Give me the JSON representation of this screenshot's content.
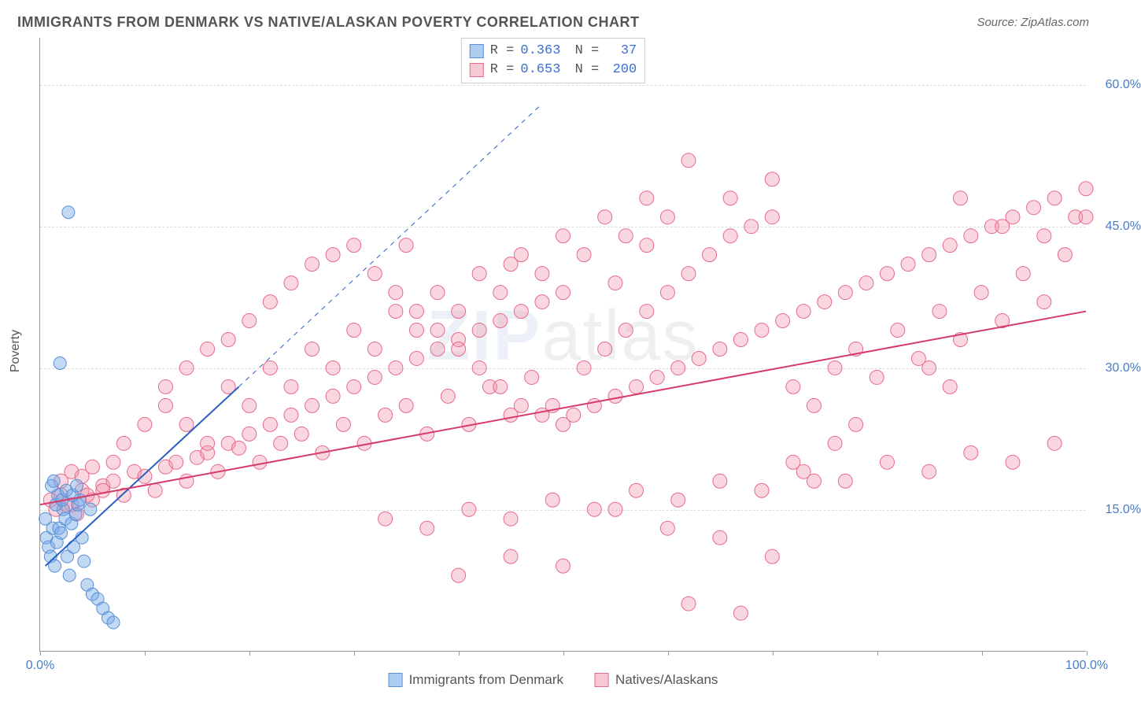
{
  "title": "IMMIGRANTS FROM DENMARK VS NATIVE/ALASKAN POVERTY CORRELATION CHART",
  "source": "Source: ZipAtlas.com",
  "watermark_main": "ZIP",
  "watermark_sub": "atlas",
  "y_axis_label": "Poverty",
  "chart": {
    "type": "scatter",
    "xlim": [
      0,
      100
    ],
    "ylim": [
      0,
      65
    ],
    "x_ticks": [
      0,
      10,
      20,
      30,
      40,
      50,
      60,
      70,
      80,
      90,
      100
    ],
    "x_tick_labels": {
      "0": "0.0%",
      "100": "100.0%"
    },
    "y_ticks": [
      15,
      30,
      45,
      60
    ],
    "y_tick_labels": [
      "15.0%",
      "30.0%",
      "45.0%",
      "60.0%"
    ],
    "grid_color": "#dddddd",
    "background_color": "#ffffff",
    "series": [
      {
        "name": "Immigrants from Denmark",
        "swatch_fill": "#aecdf0",
        "swatch_border": "#5a8fd6",
        "point_fill": "rgba(120,170,230,0.45)",
        "point_stroke": "#5a8fd6",
        "point_radius": 8,
        "R": "0.363",
        "N": "37",
        "trend": {
          "x1": 0.5,
          "y1": 9,
          "x2": 19,
          "y2": 28,
          "extend_x2": 48,
          "extend_y2": 58,
          "color": "#2b5fc4",
          "width": 2
        },
        "points": [
          [
            0.5,
            14
          ],
          [
            0.6,
            12
          ],
          [
            0.8,
            11
          ],
          [
            1,
            10
          ],
          [
            1.2,
            13
          ],
          [
            1.4,
            9
          ],
          [
            1.6,
            11.5
          ],
          [
            1.8,
            13
          ],
          [
            2,
            12.5
          ],
          [
            2.2,
            15
          ],
          [
            2.4,
            14
          ],
          [
            2.6,
            10
          ],
          [
            2.8,
            8
          ],
          [
            3,
            13.5
          ],
          [
            3.2,
            11
          ],
          [
            3.4,
            14.5
          ],
          [
            3.6,
            15.5
          ],
          [
            3.8,
            16
          ],
          [
            4,
            12
          ],
          [
            4.2,
            9.5
          ],
          [
            1.5,
            15.5
          ],
          [
            1.7,
            16.5
          ],
          [
            2.1,
            16
          ],
          [
            2.5,
            17
          ],
          [
            3.1,
            16.5
          ],
          [
            3.5,
            17.5
          ],
          [
            4.5,
            7
          ],
          [
            5,
            6
          ],
          [
            5.5,
            5.5
          ],
          [
            6,
            4.5
          ],
          [
            6.5,
            3.5
          ],
          [
            7,
            3
          ],
          [
            1.1,
            17.5
          ],
          [
            1.3,
            18
          ],
          [
            2.7,
            46.5
          ],
          [
            1.9,
            30.5
          ],
          [
            4.8,
            15
          ]
        ]
      },
      {
        "name": "Natives/Alaskans",
        "swatch_fill": "#f7c9d4",
        "swatch_border": "#e66a8a",
        "point_fill": "rgba(240,140,165,0.35)",
        "point_stroke": "#e66a8a",
        "point_radius": 9,
        "R": "0.653",
        "N": "200",
        "trend": {
          "x1": 0,
          "y1": 15.5,
          "x2": 100,
          "y2": 36,
          "color": "#d63b6b",
          "width": 2
        },
        "points": [
          [
            1,
            16
          ],
          [
            2,
            16.5
          ],
          [
            3,
            15.5
          ],
          [
            4,
            17
          ],
          [
            5,
            16
          ],
          [
            6,
            17.5
          ],
          [
            7,
            18
          ],
          [
            8,
            16.5
          ],
          [
            9,
            19
          ],
          [
            10,
            18.5
          ],
          [
            11,
            17
          ],
          [
            12,
            19.5
          ],
          [
            13,
            20
          ],
          [
            14,
            18
          ],
          [
            15,
            20.5
          ],
          [
            16,
            21
          ],
          [
            17,
            19
          ],
          [
            18,
            22
          ],
          [
            19,
            21.5
          ],
          [
            20,
            23
          ],
          [
            21,
            20
          ],
          [
            22,
            24
          ],
          [
            23,
            22
          ],
          [
            24,
            25
          ],
          [
            25,
            23
          ],
          [
            26,
            26
          ],
          [
            27,
            21
          ],
          [
            28,
            27
          ],
          [
            29,
            24
          ],
          [
            30,
            28
          ],
          [
            31,
            22
          ],
          [
            32,
            29
          ],
          [
            33,
            25
          ],
          [
            34,
            30
          ],
          [
            35,
            26
          ],
          [
            36,
            31
          ],
          [
            37,
            23
          ],
          [
            38,
            32
          ],
          [
            39,
            27
          ],
          [
            40,
            33
          ],
          [
            41,
            24
          ],
          [
            42,
            34
          ],
          [
            43,
            28
          ],
          [
            44,
            35
          ],
          [
            45,
            25
          ],
          [
            46,
            36
          ],
          [
            47,
            29
          ],
          [
            48,
            37
          ],
          [
            49,
            26
          ],
          [
            50,
            38
          ],
          [
            12,
            28
          ],
          [
            14,
            30
          ],
          [
            16,
            32
          ],
          [
            18,
            33
          ],
          [
            20,
            35
          ],
          [
            22,
            37
          ],
          [
            24,
            39
          ],
          [
            26,
            41
          ],
          [
            28,
            42
          ],
          [
            30,
            43
          ],
          [
            32,
            40
          ],
          [
            34,
            38
          ],
          [
            36,
            36
          ],
          [
            38,
            34
          ],
          [
            40,
            32
          ],
          [
            42,
            30
          ],
          [
            44,
            28
          ],
          [
            46,
            26
          ],
          [
            48,
            25
          ],
          [
            50,
            24
          ],
          [
            52,
            30
          ],
          [
            54,
            32
          ],
          [
            56,
            34
          ],
          [
            58,
            36
          ],
          [
            60,
            38
          ],
          [
            62,
            40
          ],
          [
            64,
            42
          ],
          [
            66,
            44
          ],
          [
            68,
            45
          ],
          [
            70,
            46
          ],
          [
            51,
            25
          ],
          [
            53,
            26
          ],
          [
            55,
            27
          ],
          [
            57,
            28
          ],
          [
            59,
            29
          ],
          [
            61,
            30
          ],
          [
            63,
            31
          ],
          [
            65,
            32
          ],
          [
            67,
            33
          ],
          [
            69,
            34
          ],
          [
            71,
            35
          ],
          [
            73,
            36
          ],
          [
            75,
            37
          ],
          [
            77,
            38
          ],
          [
            79,
            39
          ],
          [
            81,
            40
          ],
          [
            83,
            41
          ],
          [
            85,
            42
          ],
          [
            87,
            43
          ],
          [
            89,
            44
          ],
          [
            91,
            45
          ],
          [
            93,
            46
          ],
          [
            95,
            47
          ],
          [
            97,
            48
          ],
          [
            99,
            46
          ],
          [
            72,
            28
          ],
          [
            74,
            26
          ],
          [
            76,
            30
          ],
          [
            78,
            32
          ],
          [
            80,
            29
          ],
          [
            82,
            34
          ],
          [
            84,
            31
          ],
          [
            86,
            36
          ],
          [
            88,
            33
          ],
          [
            90,
            38
          ],
          [
            92,
            35
          ],
          [
            94,
            40
          ],
          [
            96,
            37
          ],
          [
            98,
            42
          ],
          [
            100,
            49
          ],
          [
            55,
            15
          ],
          [
            60,
            13
          ],
          [
            65,
            12
          ],
          [
            70,
            10
          ],
          [
            62,
            5
          ],
          [
            67,
            4
          ],
          [
            72,
            20
          ],
          [
            74,
            18
          ],
          [
            76,
            22
          ],
          [
            78,
            24
          ],
          [
            58,
            43
          ],
          [
            62,
            52
          ],
          [
            66,
            48
          ],
          [
            70,
            50
          ],
          [
            88,
            48
          ],
          [
            92,
            45
          ],
          [
            96,
            44
          ],
          [
            100,
            46
          ],
          [
            85,
            30
          ],
          [
            87,
            28
          ],
          [
            8,
            22
          ],
          [
            10,
            24
          ],
          [
            12,
            26
          ],
          [
            14,
            24
          ],
          [
            16,
            22
          ],
          [
            18,
            28
          ],
          [
            20,
            26
          ],
          [
            22,
            30
          ],
          [
            24,
            28
          ],
          [
            26,
            32
          ],
          [
            28,
            30
          ],
          [
            30,
            34
          ],
          [
            32,
            32
          ],
          [
            34,
            36
          ],
          [
            36,
            34
          ],
          [
            38,
            38
          ],
          [
            40,
            36
          ],
          [
            42,
            40
          ],
          [
            44,
            38
          ],
          [
            46,
            42
          ],
          [
            48,
            40
          ],
          [
            50,
            44
          ],
          [
            52,
            42
          ],
          [
            54,
            46
          ],
          [
            56,
            44
          ],
          [
            58,
            48
          ],
          [
            60,
            46
          ],
          [
            40,
            8
          ],
          [
            45,
            10
          ],
          [
            50,
            9
          ],
          [
            33,
            14
          ],
          [
            37,
            13
          ],
          [
            41,
            15
          ],
          [
            45,
            14
          ],
          [
            49,
            16
          ],
          [
            53,
            15
          ],
          [
            57,
            17
          ],
          [
            61,
            16
          ],
          [
            65,
            18
          ],
          [
            69,
            17
          ],
          [
            73,
            19
          ],
          [
            77,
            18
          ],
          [
            81,
            20
          ],
          [
            85,
            19
          ],
          [
            89,
            21
          ],
          [
            93,
            20
          ],
          [
            97,
            22
          ],
          [
            35,
            43
          ],
          [
            45,
            41
          ],
          [
            55,
            39
          ],
          [
            2,
            18
          ],
          [
            3,
            19
          ],
          [
            4,
            18.5
          ],
          [
            5,
            19.5
          ],
          [
            6,
            17
          ],
          [
            7,
            20
          ],
          [
            1.5,
            15
          ],
          [
            2.5,
            15.5
          ],
          [
            3.5,
            14.5
          ],
          [
            4.5,
            16.5
          ]
        ]
      }
    ]
  },
  "legend_top_rows": [
    {
      "swatch_series": 0,
      "label_r": "R =",
      "label_n": "N ="
    },
    {
      "swatch_series": 1,
      "label_r": "R =",
      "label_n": "N ="
    }
  ],
  "legend_bottom": [
    {
      "series": 0
    },
    {
      "series": 1
    }
  ]
}
